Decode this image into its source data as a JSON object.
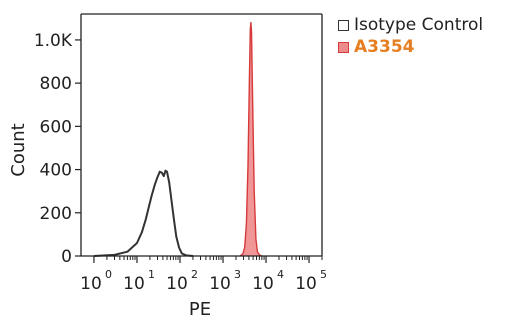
{
  "chart_data": {
    "type": "area",
    "xlabel": "PE",
    "ylabel": "Count",
    "x_scale": "log",
    "xlim": [
      0.5,
      200000
    ],
    "ylim": [
      0,
      1120
    ],
    "x_ticks": [
      {
        "base": "10",
        "exp": "0"
      },
      {
        "base": "10",
        "exp": "1"
      },
      {
        "base": "10",
        "exp": "2"
      },
      {
        "base": "10",
        "exp": "3"
      },
      {
        "base": "10",
        "exp": "4"
      },
      {
        "base": "10",
        "exp": "5"
      }
    ],
    "y_ticks": [
      {
        "value": 0,
        "label": "0"
      },
      {
        "value": 200,
        "label": "200"
      },
      {
        "value": 400,
        "label": "400"
      },
      {
        "value": 600,
        "label": "600"
      },
      {
        "value": 800,
        "label": "800"
      },
      {
        "value": 1000,
        "label": "1.0K"
      }
    ],
    "legend_position": "top-right, outside plot",
    "series": [
      {
        "name": "Isotype Control",
        "color": "#333333",
        "fill": "none",
        "label_style": "normal",
        "points": [
          [
            1,
            0
          ],
          [
            3,
            5
          ],
          [
            6,
            20
          ],
          [
            10,
            60
          ],
          [
            13,
            110
          ],
          [
            16,
            170
          ],
          [
            19,
            230
          ],
          [
            22,
            280
          ],
          [
            26,
            330
          ],
          [
            30,
            365
          ],
          [
            34,
            390
          ],
          [
            38,
            385
          ],
          [
            42,
            370
          ],
          [
            46,
            395
          ],
          [
            50,
            390
          ],
          [
            56,
            340
          ],
          [
            63,
            260
          ],
          [
            72,
            170
          ],
          [
            82,
            90
          ],
          [
            95,
            40
          ],
          [
            110,
            12
          ],
          [
            140,
            3
          ],
          [
            200,
            0
          ]
        ]
      },
      {
        "name": "A3354",
        "color": "#d63a3a",
        "fill": "#ee8b8b",
        "label_style": "bold",
        "label_color": "#e67e22",
        "points": [
          [
            2500,
            0
          ],
          [
            2900,
            10
          ],
          [
            3200,
            40
          ],
          [
            3500,
            150
          ],
          [
            3800,
            420
          ],
          [
            4100,
            820
          ],
          [
            4300,
            1050
          ],
          [
            4450,
            1080
          ],
          [
            4600,
            1040
          ],
          [
            4900,
            700
          ],
          [
            5300,
            300
          ],
          [
            5800,
            80
          ],
          [
            6300,
            20
          ],
          [
            7000,
            5
          ],
          [
            8000,
            0
          ]
        ]
      }
    ]
  }
}
